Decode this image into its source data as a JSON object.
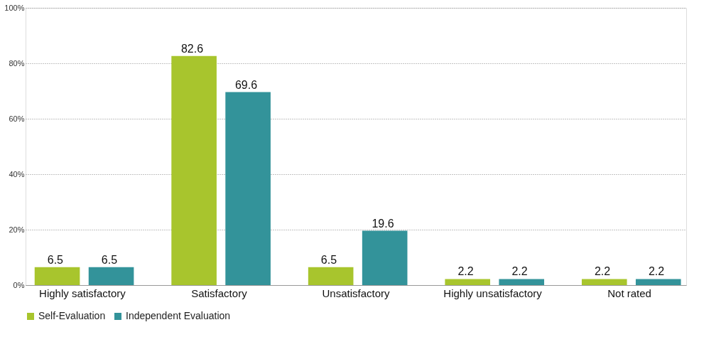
{
  "chart_data": {
    "type": "bar",
    "categories": [
      "Highly satisfactory",
      "Satisfactory",
      "Unsatisfactory",
      "Highly unsatisfactory",
      "Not rated"
    ],
    "series": [
      {
        "name": "Self-Evaluation",
        "color": "#a8c52d",
        "values": [
          6.5,
          82.6,
          6.5,
          2.2,
          2.2
        ]
      },
      {
        "name": "Independent Evaluation",
        "color": "#33939a",
        "values": [
          6.5,
          69.6,
          19.6,
          2.2,
          2.2
        ]
      }
    ],
    "ylim": [
      0,
      100
    ],
    "yticks": [
      {
        "value": 0,
        "label": "0%"
      },
      {
        "value": 20,
        "label": "20%"
      },
      {
        "value": 40,
        "label": "40%"
      },
      {
        "value": 60,
        "label": "60%"
      },
      {
        "value": 80,
        "label": "80%"
      },
      {
        "value": 100,
        "label": "100%"
      }
    ],
    "grid": "y",
    "legend": "bottom",
    "data_labels": true
  }
}
